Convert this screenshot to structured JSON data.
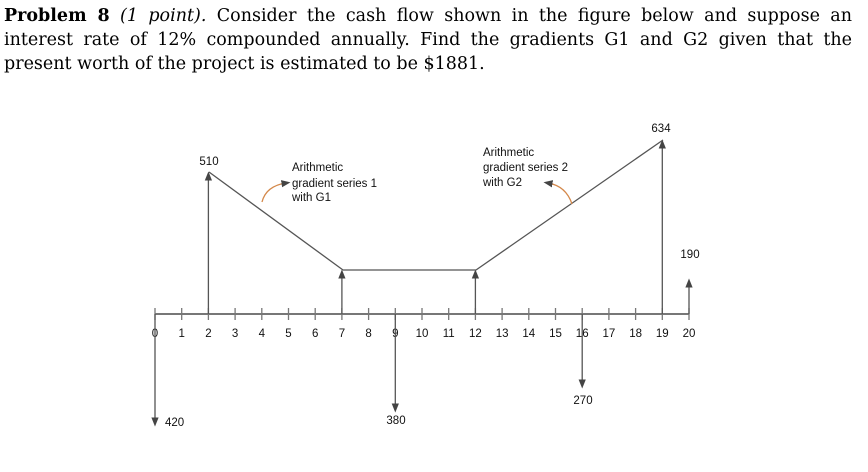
{
  "problem": {
    "label": "Problem 8",
    "points": "(1 point).",
    "text": "Consider the cash flow shown in the figure below and suppose an interest rate of 12% compounded annually. Find the gradients G1 and G2 given that the present worth of the project is estimated to be $1881."
  },
  "diagram": {
    "periods": [
      "0",
      "1",
      "2",
      "3",
      "4",
      "5",
      "6",
      "7",
      "8",
      "9",
      "10",
      "11",
      "12",
      "13",
      "14",
      "15",
      "16",
      "17",
      "18",
      "19",
      "20"
    ],
    "up_flows": [
      {
        "period": 2,
        "label": "510"
      },
      {
        "period": 7,
        "label": ""
      },
      {
        "period": 12,
        "label": ""
      },
      {
        "period": 19,
        "label": "634"
      },
      {
        "period": 20,
        "label": "190"
      }
    ],
    "down_flows": [
      {
        "period": 0,
        "label": "420"
      },
      {
        "period": 9,
        "label": "380"
      },
      {
        "period": 16,
        "label": "270"
      }
    ],
    "annotation1": [
      "Arithmetic",
      "gradient series 1",
      "with G1"
    ],
    "annotation2": [
      "Arithmetic",
      "gradient series 2",
      "with G2"
    ]
  }
}
